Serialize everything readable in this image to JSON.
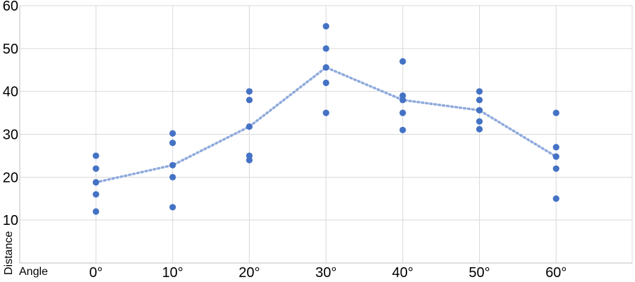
{
  "chart_data": {
    "type": "scatter",
    "xlabel": "Angle",
    "ylabel": "Distance",
    "ylim": [
      0,
      60
    ],
    "yticks": [
      10,
      20,
      30,
      40,
      50,
      60
    ],
    "categories": [
      "0°",
      "10°",
      "20°",
      "30°",
      "40°",
      "50°",
      "60°"
    ],
    "grid": true,
    "series": [
      {
        "type": "scatter",
        "color": "#4472C4",
        "points": [
          {
            "x": "0°",
            "y": 25
          },
          {
            "x": "0°",
            "y": 22
          },
          {
            "x": "0°",
            "y": 18.8
          },
          {
            "x": "0°",
            "y": 16
          },
          {
            "x": "0°",
            "y": 12
          },
          {
            "x": "10°",
            "y": 30.2
          },
          {
            "x": "10°",
            "y": 28
          },
          {
            "x": "10°",
            "y": 22.8
          },
          {
            "x": "10°",
            "y": 20
          },
          {
            "x": "10°",
            "y": 13
          },
          {
            "x": "20°",
            "y": 40
          },
          {
            "x": "20°",
            "y": 38
          },
          {
            "x": "20°",
            "y": 31.8
          },
          {
            "x": "20°",
            "y": 25
          },
          {
            "x": "20°",
            "y": 24
          },
          {
            "x": "30°",
            "y": 55.2
          },
          {
            "x": "30°",
            "y": 50
          },
          {
            "x": "30°",
            "y": 45.6
          },
          {
            "x": "30°",
            "y": 42
          },
          {
            "x": "30°",
            "y": 35
          },
          {
            "x": "40°",
            "y": 47
          },
          {
            "x": "40°",
            "y": 39
          },
          {
            "x": "40°",
            "y": 38
          },
          {
            "x": "40°",
            "y": 35
          },
          {
            "x": "40°",
            "y": 31
          },
          {
            "x": "50°",
            "y": 40
          },
          {
            "x": "50°",
            "y": 38
          },
          {
            "x": "50°",
            "y": 35.6
          },
          {
            "x": "50°",
            "y": 33
          },
          {
            "x": "50°",
            "y": 31.2
          },
          {
            "x": "60°",
            "y": 35
          },
          {
            "x": "60°",
            "y": 27
          },
          {
            "x": "60°",
            "y": 24.8
          },
          {
            "x": "60°",
            "y": 22
          },
          {
            "x": "60°",
            "y": 15
          }
        ]
      },
      {
        "type": "line",
        "style": "dotted",
        "color": "#8FAADC",
        "values": [
          18.8,
          22.8,
          31.8,
          45.6,
          38,
          35.6,
          24.8
        ]
      }
    ]
  }
}
